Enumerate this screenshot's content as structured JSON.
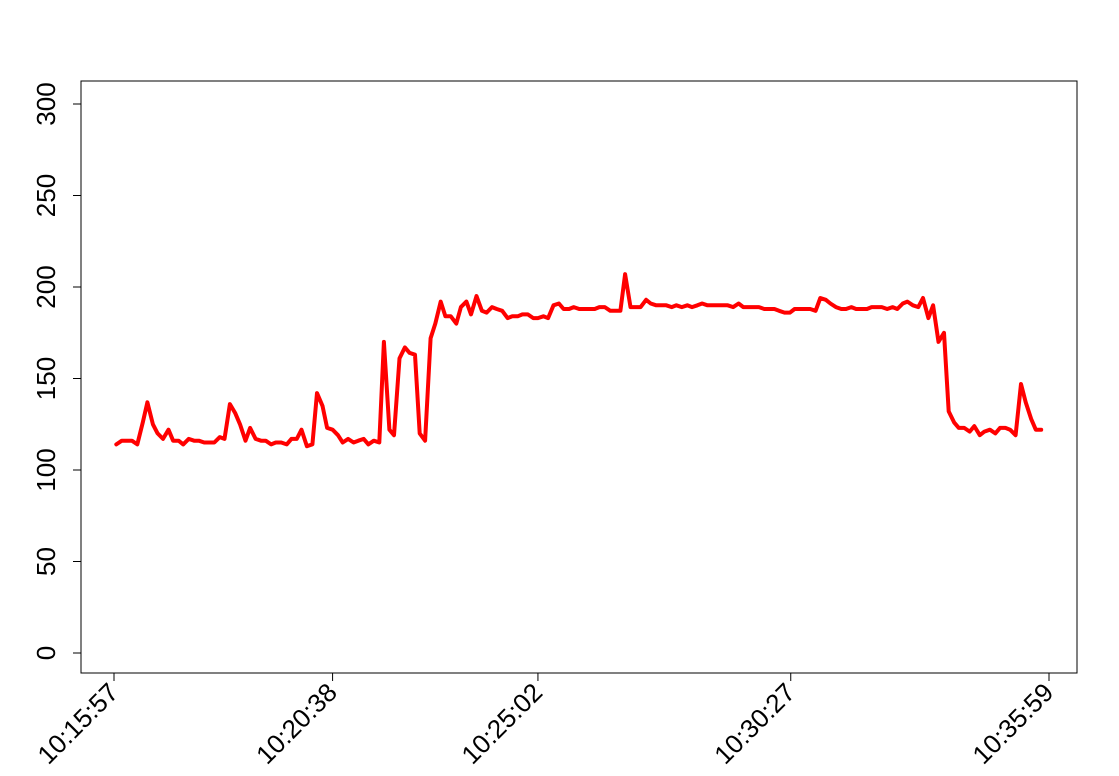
{
  "chart_data": {
    "type": "line",
    "title": "",
    "xlabel": "",
    "ylabel": "",
    "ylim": [
      0,
      300
    ],
    "yticks": [
      0,
      50,
      100,
      150,
      200,
      250,
      300
    ],
    "grid": false,
    "colors": {
      "series": "#ff0000",
      "axes": "#000000",
      "background": "#ffffff"
    },
    "x_tick_labels": [
      "10:15:57",
      "10:20:38",
      "10:25:02",
      "10:30:27",
      "10:35:59"
    ],
    "series": [
      {
        "color": "#ff0000",
        "points": [
          [
            "10:16:00",
            114
          ],
          [
            "10:16:07",
            116
          ],
          [
            "10:16:14",
            116
          ],
          [
            "10:16:20",
            116
          ],
          [
            "10:16:27",
            114
          ],
          [
            "10:16:34",
            126
          ],
          [
            "10:16:40",
            137
          ],
          [
            "10:16:47",
            125
          ],
          [
            "10:16:53",
            120
          ],
          [
            "10:17:00",
            117
          ],
          [
            "10:17:07",
            122
          ],
          [
            "10:17:13",
            116
          ],
          [
            "10:17:20",
            116
          ],
          [
            "10:17:26",
            114
          ],
          [
            "10:17:33",
            117
          ],
          [
            "10:17:40",
            116
          ],
          [
            "10:17:46",
            116
          ],
          [
            "10:17:53",
            115
          ],
          [
            "10:18:00",
            115
          ],
          [
            "10:18:06",
            115
          ],
          [
            "10:18:13",
            118
          ],
          [
            "10:18:19",
            117
          ],
          [
            "10:18:26",
            136
          ],
          [
            "10:18:33",
            131
          ],
          [
            "10:18:39",
            125
          ],
          [
            "10:18:46",
            116
          ],
          [
            "10:18:52",
            123
          ],
          [
            "10:18:59",
            117
          ],
          [
            "10:19:06",
            116
          ],
          [
            "10:19:12",
            116
          ],
          [
            "10:19:19",
            114
          ],
          [
            "10:19:25",
            115
          ],
          [
            "10:19:32",
            115
          ],
          [
            "10:19:39",
            114
          ],
          [
            "10:19:45",
            117
          ],
          [
            "10:19:52",
            117
          ],
          [
            "10:19:58",
            122
          ],
          [
            "10:20:05",
            113
          ],
          [
            "10:20:12",
            114
          ],
          [
            "10:20:18",
            142
          ],
          [
            "10:20:25",
            135
          ],
          [
            "10:20:31",
            123
          ],
          [
            "10:20:38",
            122
          ],
          [
            "10:20:45",
            119
          ],
          [
            "10:20:51",
            115
          ],
          [
            "10:20:58",
            117
          ],
          [
            "10:21:05",
            115
          ],
          [
            "10:21:11",
            116
          ],
          [
            "10:21:18",
            117
          ],
          [
            "10:21:24",
            114
          ],
          [
            "10:21:31",
            116
          ],
          [
            "10:21:38",
            115
          ],
          [
            "10:21:44",
            170
          ],
          [
            "10:21:51",
            122
          ],
          [
            "10:21:57",
            119
          ],
          [
            "10:22:04",
            161
          ],
          [
            "10:22:11",
            167
          ],
          [
            "10:22:17",
            164
          ],
          [
            "10:22:24",
            163
          ],
          [
            "10:22:30",
            120
          ],
          [
            "10:22:37",
            116
          ],
          [
            "10:22:44",
            172
          ],
          [
            "10:22:50",
            180
          ],
          [
            "10:22:57",
            192
          ],
          [
            "10:23:03",
            184
          ],
          [
            "10:23:10",
            184
          ],
          [
            "10:23:17",
            180
          ],
          [
            "10:23:23",
            189
          ],
          [
            "10:23:30",
            192
          ],
          [
            "10:23:36",
            185
          ],
          [
            "10:23:43",
            195
          ],
          [
            "10:23:50",
            187
          ],
          [
            "10:23:56",
            186
          ],
          [
            "10:24:03",
            189
          ],
          [
            "10:24:09",
            188
          ],
          [
            "10:24:16",
            187
          ],
          [
            "10:24:23",
            183
          ],
          [
            "10:24:29",
            184
          ],
          [
            "10:24:36",
            184
          ],
          [
            "10:24:42",
            185
          ],
          [
            "10:24:49",
            185
          ],
          [
            "10:24:56",
            183
          ],
          [
            "10:25:02",
            183
          ],
          [
            "10:25:09",
            184
          ],
          [
            "10:25:15",
            183
          ],
          [
            "10:25:22",
            190
          ],
          [
            "10:25:29",
            191
          ],
          [
            "10:25:35",
            188
          ],
          [
            "10:25:42",
            188
          ],
          [
            "10:25:48",
            189
          ],
          [
            "10:25:55",
            188
          ],
          [
            "10:26:02",
            188
          ],
          [
            "10:26:08",
            188
          ],
          [
            "10:26:15",
            188
          ],
          [
            "10:26:21",
            189
          ],
          [
            "10:26:28",
            189
          ],
          [
            "10:26:35",
            187
          ],
          [
            "10:26:41",
            187
          ],
          [
            "10:26:48",
            187
          ],
          [
            "10:26:54",
            207
          ],
          [
            "10:27:01",
            189
          ],
          [
            "10:27:08",
            189
          ],
          [
            "10:27:14",
            189
          ],
          [
            "10:27:21",
            193
          ],
          [
            "10:27:27",
            191
          ],
          [
            "10:27:34",
            190
          ],
          [
            "10:27:41",
            190
          ],
          [
            "10:27:47",
            190
          ],
          [
            "10:27:54",
            189
          ],
          [
            "10:28:00",
            190
          ],
          [
            "10:28:07",
            189
          ],
          [
            "10:28:14",
            190
          ],
          [
            "10:28:20",
            189
          ],
          [
            "10:28:27",
            190
          ],
          [
            "10:28:33",
            191
          ],
          [
            "10:28:40",
            190
          ],
          [
            "10:28:47",
            190
          ],
          [
            "10:28:53",
            190
          ],
          [
            "10:29:00",
            190
          ],
          [
            "10:29:06",
            190
          ],
          [
            "10:29:13",
            189
          ],
          [
            "10:29:20",
            191
          ],
          [
            "10:29:26",
            189
          ],
          [
            "10:29:33",
            189
          ],
          [
            "10:29:39",
            189
          ],
          [
            "10:29:46",
            189
          ],
          [
            "10:29:53",
            188
          ],
          [
            "10:29:59",
            188
          ],
          [
            "10:30:06",
            188
          ],
          [
            "10:30:12",
            187
          ],
          [
            "10:30:19",
            186
          ],
          [
            "10:30:26",
            186
          ],
          [
            "10:30:32",
            188
          ],
          [
            "10:30:39",
            188
          ],
          [
            "10:30:45",
            188
          ],
          [
            "10:30:52",
            188
          ],
          [
            "10:30:59",
            187
          ],
          [
            "10:31:05",
            194
          ],
          [
            "10:31:12",
            193
          ],
          [
            "10:31:18",
            191
          ],
          [
            "10:31:25",
            189
          ],
          [
            "10:31:32",
            188
          ],
          [
            "10:31:38",
            188
          ],
          [
            "10:31:45",
            189
          ],
          [
            "10:31:51",
            188
          ],
          [
            "10:31:58",
            188
          ],
          [
            "10:32:05",
            188
          ],
          [
            "10:32:11",
            189
          ],
          [
            "10:32:18",
            189
          ],
          [
            "10:32:24",
            189
          ],
          [
            "10:32:31",
            188
          ],
          [
            "10:32:38",
            189
          ],
          [
            "10:32:44",
            188
          ],
          [
            "10:32:51",
            191
          ],
          [
            "10:32:57",
            192
          ],
          [
            "10:33:04",
            190
          ],
          [
            "10:33:11",
            189
          ],
          [
            "10:33:17",
            194
          ],
          [
            "10:33:24",
            183
          ],
          [
            "10:33:30",
            190
          ],
          [
            "10:33:37",
            170
          ],
          [
            "10:33:44",
            175
          ],
          [
            "10:33:50",
            132
          ],
          [
            "10:33:57",
            126
          ],
          [
            "10:34:03",
            123
          ],
          [
            "10:34:10",
            123
          ],
          [
            "10:34:17",
            121
          ],
          [
            "10:34:23",
            124
          ],
          [
            "10:34:30",
            119
          ],
          [
            "10:34:36",
            121
          ],
          [
            "10:34:43",
            122
          ],
          [
            "10:34:50",
            120
          ],
          [
            "10:34:56",
            123
          ],
          [
            "10:35:03",
            123
          ],
          [
            "10:35:09",
            122
          ],
          [
            "10:35:16",
            119
          ],
          [
            "10:35:23",
            147
          ],
          [
            "10:35:29",
            137
          ],
          [
            "10:35:36",
            128
          ],
          [
            "10:35:42",
            122
          ],
          [
            "10:35:49",
            122
          ]
        ]
      }
    ]
  }
}
